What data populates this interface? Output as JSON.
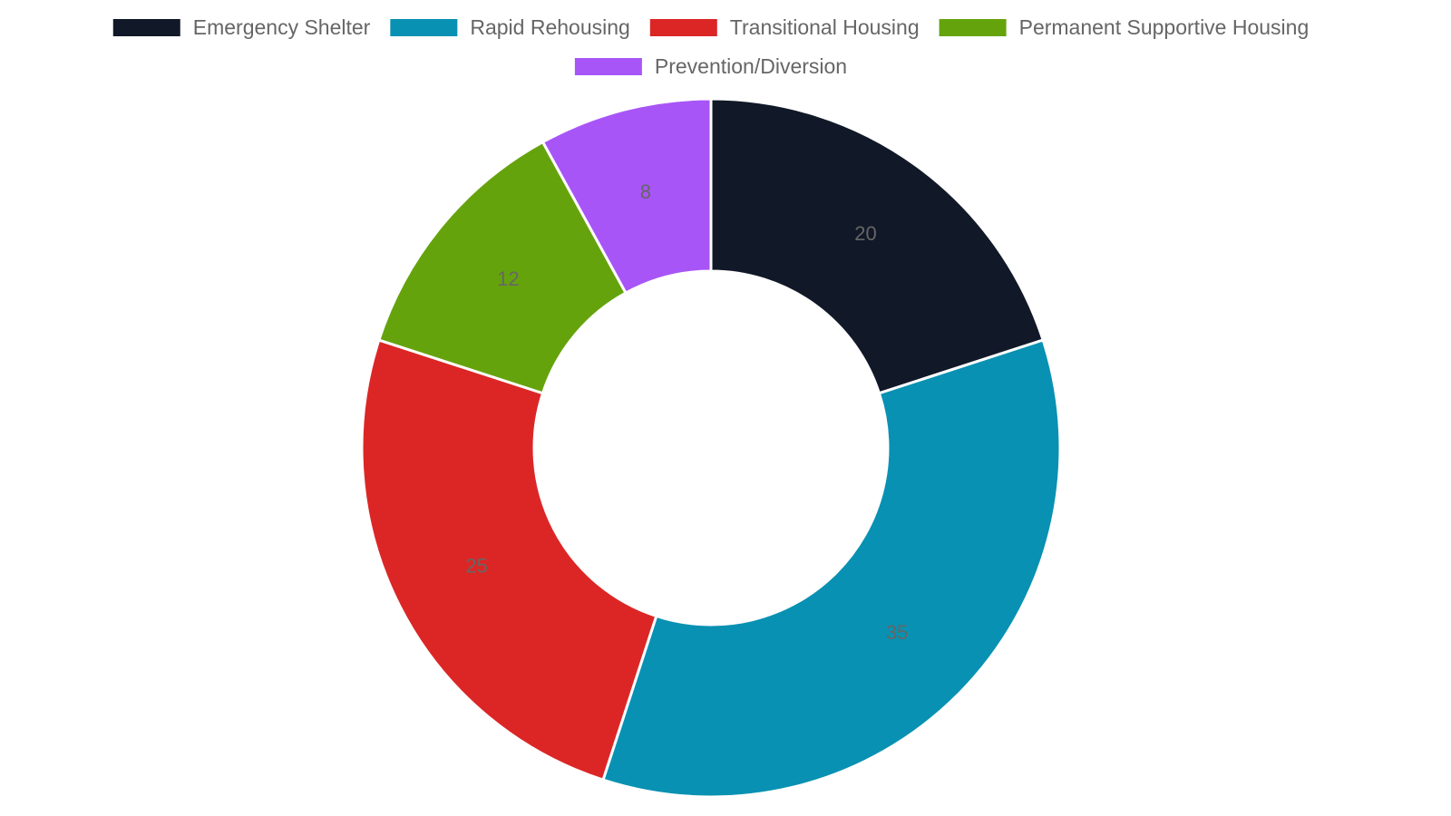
{
  "chart_data": {
    "type": "doughnut",
    "categories": [
      "Emergency Shelter",
      "Rapid Rehousing",
      "Transitional Housing",
      "Permanent Supportive Housing",
      "Prevention/Diversion"
    ],
    "values": [
      20,
      35,
      25,
      12,
      8
    ],
    "colors": [
      "#111827",
      "#0891b2",
      "#dc2626",
      "#65a30d",
      "#a855f7"
    ],
    "legend": "top"
  }
}
